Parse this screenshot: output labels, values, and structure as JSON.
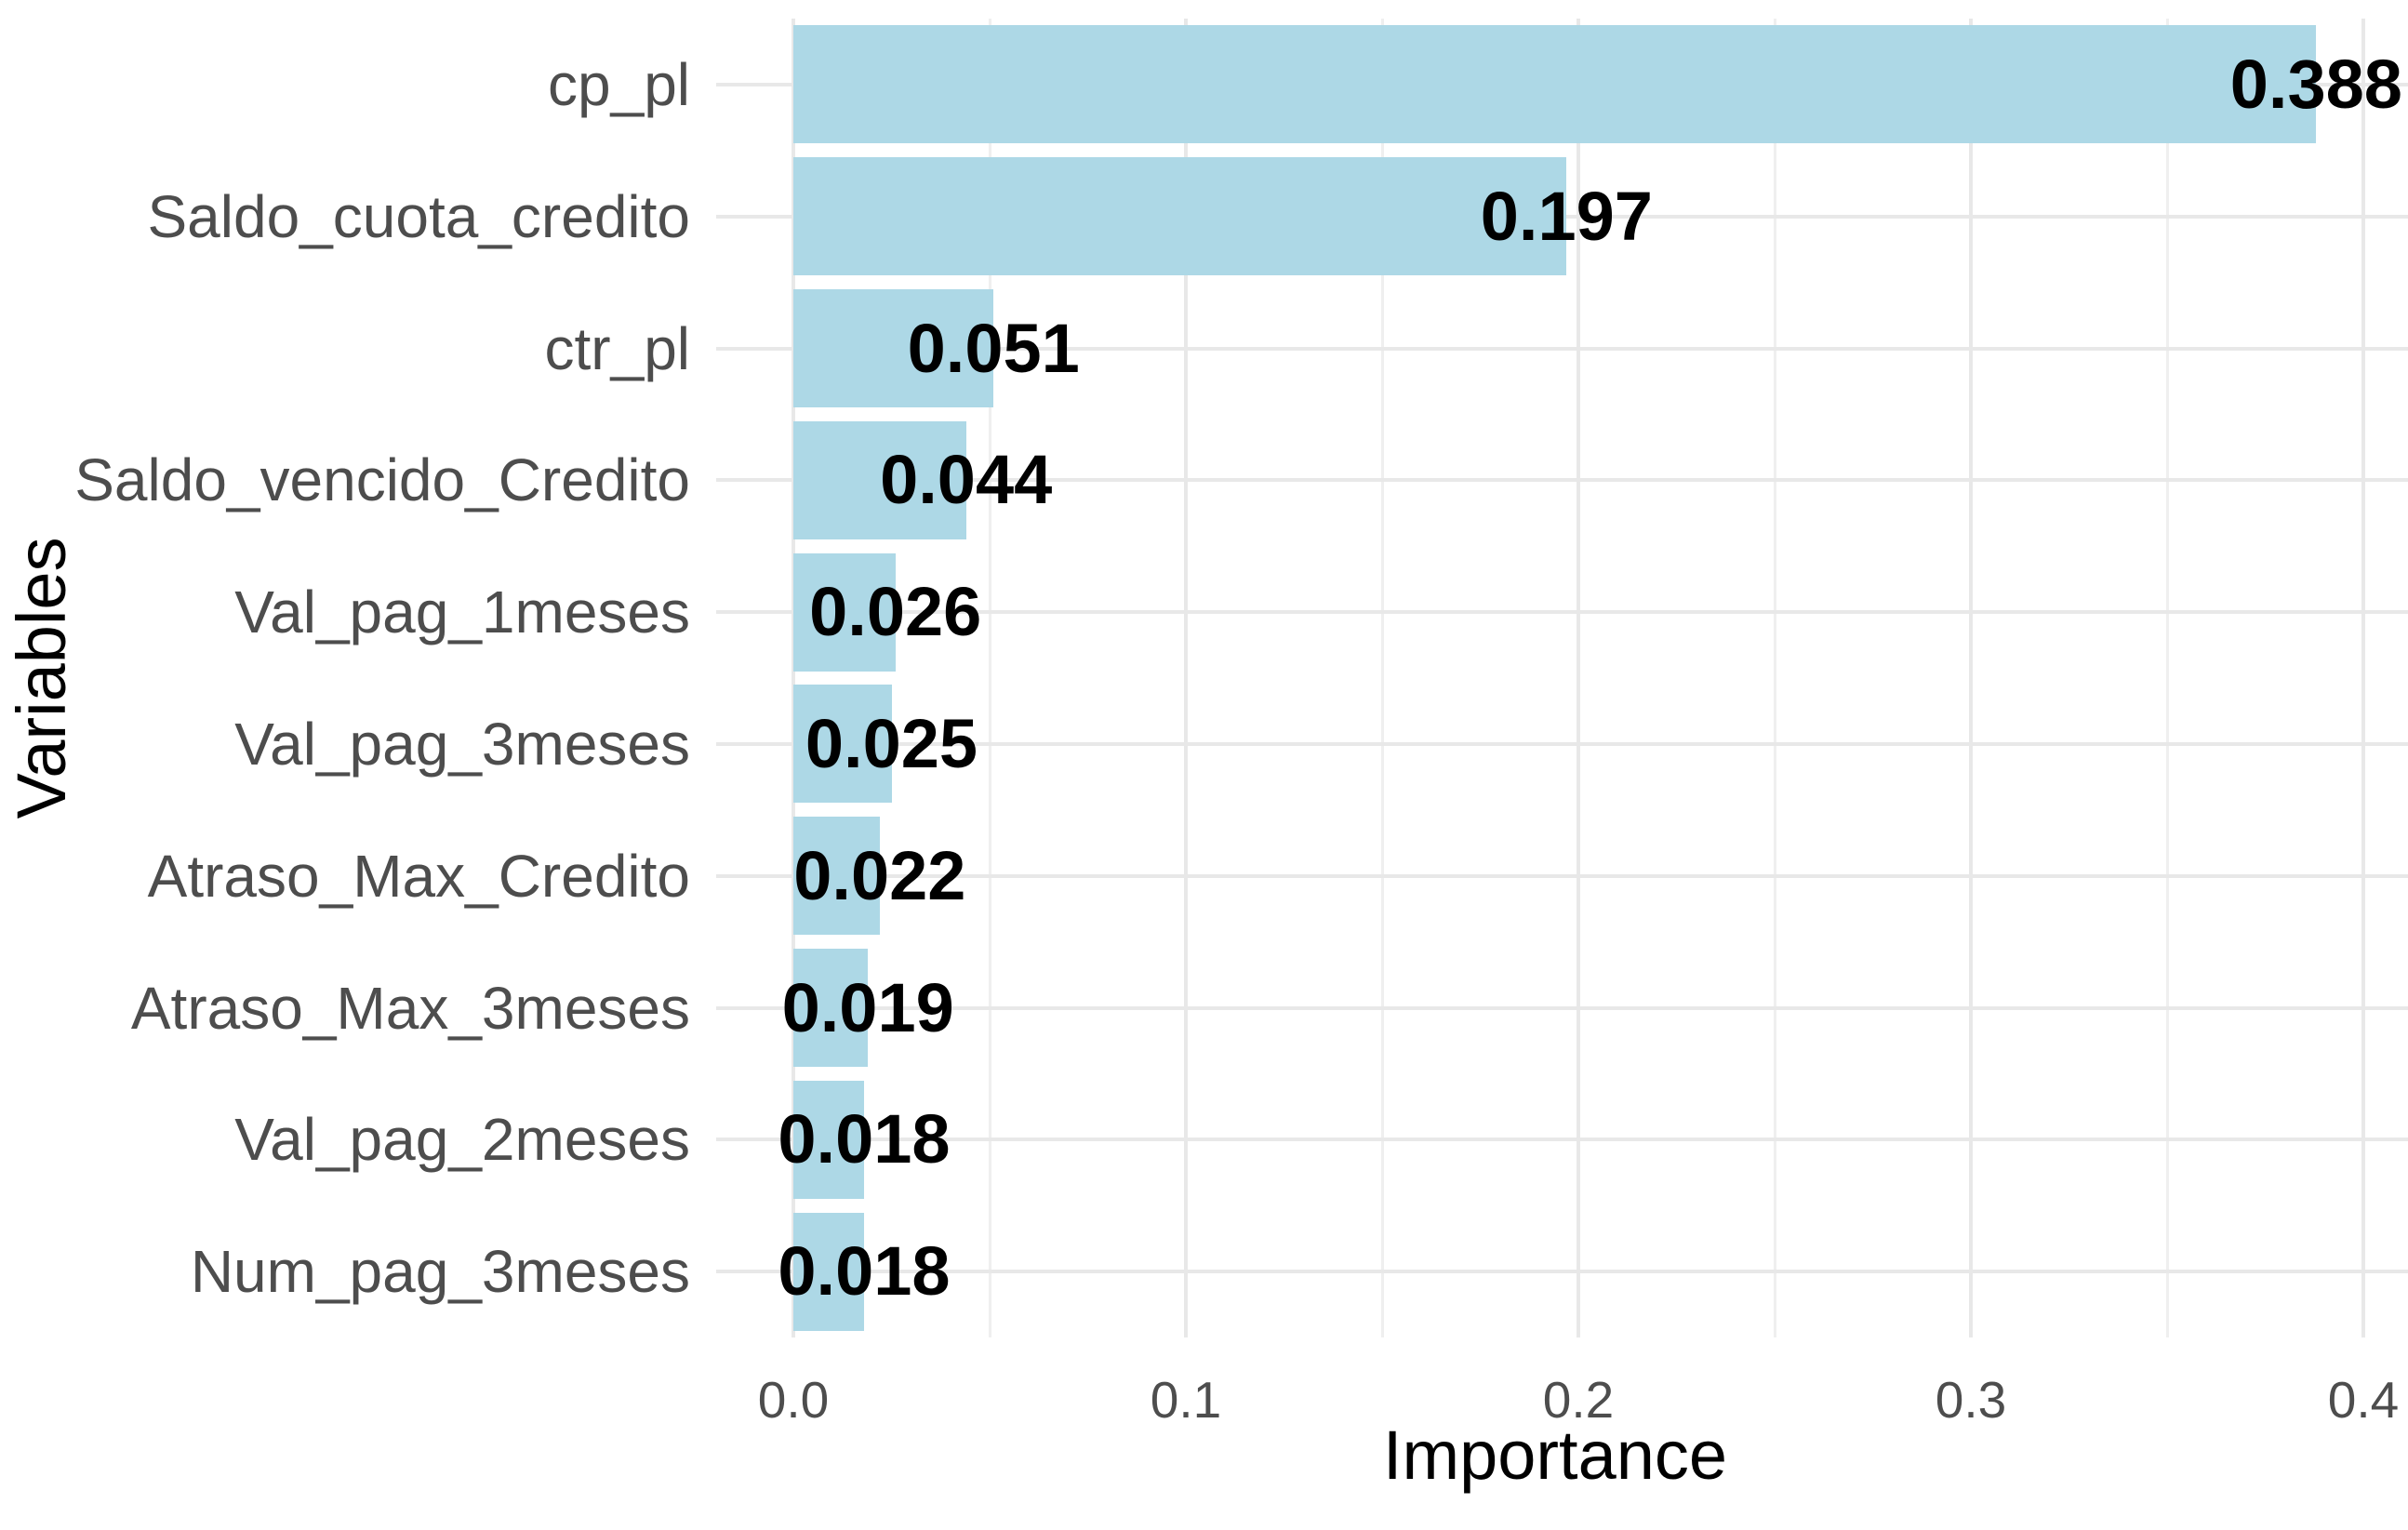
{
  "chart_data": {
    "type": "bar",
    "orientation": "horizontal",
    "title": "",
    "xlabel": "Importance",
    "ylabel": "Variables",
    "categories": [
      "cp_pl",
      "Saldo_cuota_credito",
      "ctr_pl",
      "Saldo_vencido_Credito",
      "Val_pag_1meses",
      "Val_pag_3meses",
      "Atraso_Max_Credito",
      "Atraso_Max_3meses",
      "Val_pag_2meses",
      "Num_pag_3meses"
    ],
    "values": [
      0.388,
      0.197,
      0.051,
      0.044,
      0.026,
      0.025,
      0.022,
      0.019,
      0.018,
      0.018
    ],
    "value_labels": [
      "0.388",
      "0.197",
      "0.051",
      "0.044",
      "0.026",
      "0.025",
      "0.022",
      "0.019",
      "0.018",
      "0.018"
    ],
    "x_ticks": [
      "0.0",
      "0.1",
      "0.2",
      "0.3",
      "0.4"
    ],
    "x_tick_values": [
      0.0,
      0.1,
      0.2,
      0.3,
      0.4
    ],
    "xlim": [
      -0.019,
      0.407
    ],
    "grid": true,
    "legend": false,
    "colors": {
      "bar_fill": "#ADD8E6",
      "grid_major": "#E8E8E8",
      "grid_minor": "#EFEFEF",
      "axis_text": "#4D4D4D",
      "value_text": "#000000",
      "axis_title": "#000000",
      "background": "#FFFFFF"
    }
  }
}
